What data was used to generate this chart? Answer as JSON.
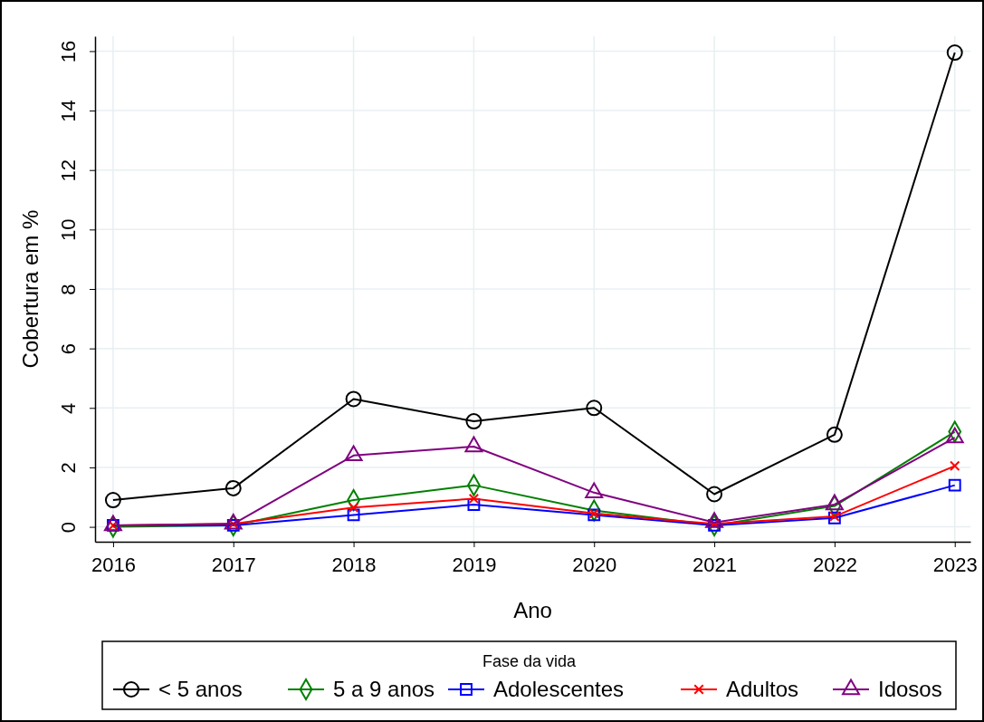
{
  "chart_data": {
    "type": "line",
    "xlabel": "Ano",
    "ylabel": "Cobertura em %",
    "legend_title": "Fase da vida",
    "legend": "bottom",
    "grid": true,
    "x": [
      2016,
      2017,
      2018,
      2019,
      2020,
      2021,
      2022,
      2023
    ],
    "xlim": [
      2015.85,
      2023.13
    ],
    "xticks": [
      2016,
      2017,
      2018,
      2019,
      2020,
      2021,
      2022,
      2023
    ],
    "ylim": [
      -0.5,
      16.5
    ],
    "yticks": [
      0,
      2,
      4,
      6,
      8,
      10,
      12,
      14,
      16
    ],
    "series": [
      {
        "name": "< 5 anos",
        "color": "#000000",
        "marker": "circle",
        "values": [
          0.9,
          1.3,
          4.3,
          3.55,
          4.0,
          1.1,
          3.1,
          15.95
        ]
      },
      {
        "name": "5 a 9 anos",
        "color": "#008000",
        "marker": "diamond",
        "values": [
          0.0,
          0.05,
          0.9,
          1.4,
          0.55,
          0.05,
          0.7,
          3.2
        ]
      },
      {
        "name": "Adolescentes",
        "color": "#0000ff",
        "marker": "square",
        "values": [
          0.05,
          0.05,
          0.4,
          0.75,
          0.4,
          0.05,
          0.3,
          1.4
        ]
      },
      {
        "name": "Adultos",
        "color": "#ff0000",
        "marker": "cross",
        "values": [
          0.05,
          0.1,
          0.65,
          0.95,
          0.45,
          0.1,
          0.35,
          2.05
        ]
      },
      {
        "name": "Idosos",
        "color": "#800080",
        "marker": "triangle",
        "values": [
          0.05,
          0.1,
          2.4,
          2.7,
          1.15,
          0.15,
          0.75,
          3.0
        ]
      }
    ]
  }
}
